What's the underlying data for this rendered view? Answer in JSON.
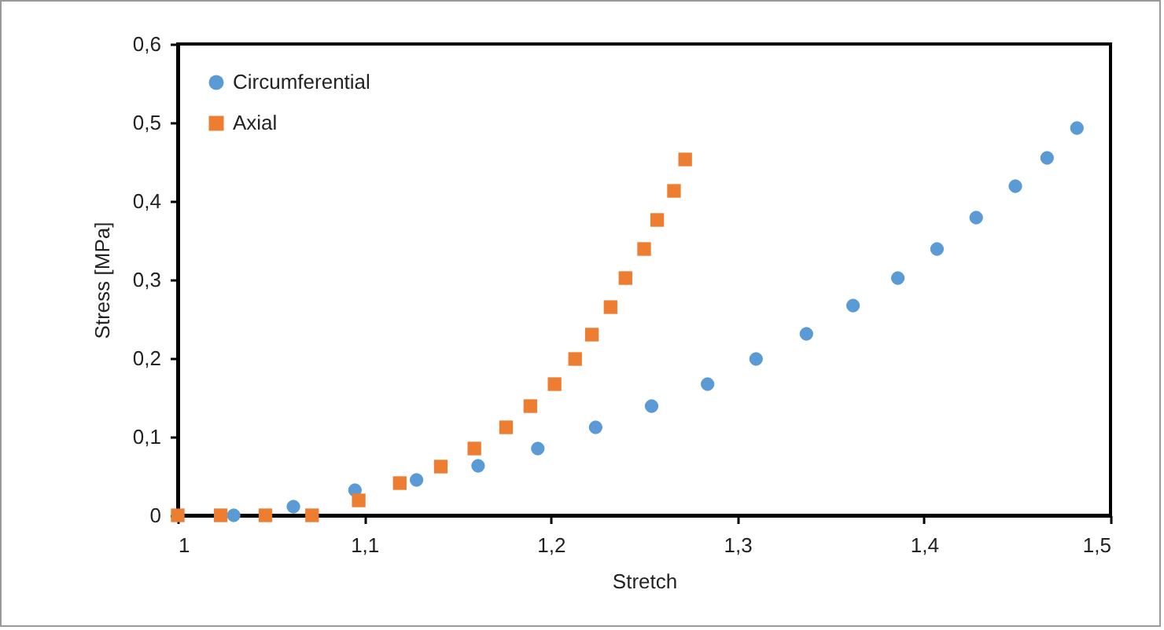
{
  "chart_data": {
    "type": "scatter",
    "xlabel": "Stretch",
    "ylabel": "Stress [MPa]",
    "xlim": [
      1,
      1.5
    ],
    "ylim": [
      0,
      0.6
    ],
    "xticks": [
      1,
      {
        "value": 1.1,
        "label": "1,1"
      },
      {
        "value": 1.2,
        "label": "1,2"
      },
      {
        "value": 1.3,
        "label": "1,3"
      },
      {
        "value": 1.4,
        "label": "1,4"
      },
      {
        "value": 1.5,
        "label": "1,5"
      }
    ],
    "yticks": [
      0,
      {
        "value": 0.1,
        "label": "0,1"
      },
      {
        "value": 0.2,
        "label": "0,2"
      },
      {
        "value": 0.3,
        "label": "0,3"
      },
      {
        "value": 0.4,
        "label": "0,4"
      },
      {
        "value": 0.5,
        "label": "0,5"
      },
      {
        "value": 0.6,
        "label": "0,6"
      }
    ],
    "grid": false,
    "legend": "top left",
    "series": [
      {
        "name": "Circumferential",
        "color": "#5b9bd5",
        "marker": "circle",
        "x": [
          1.03,
          1.062,
          1.095,
          1.128,
          1.161,
          1.193,
          1.224,
          1.254,
          1.284,
          1.31,
          1.337,
          1.362,
          1.386,
          1.407,
          1.428,
          1.449,
          1.466,
          1.482
        ],
        "values": [
          0,
          0.011,
          0.032,
          0.045,
          0.063,
          0.085,
          0.112,
          0.139,
          0.167,
          0.199,
          0.231,
          0.267,
          0.302,
          0.339,
          0.379,
          0.419,
          0.455,
          0.493
        ]
      },
      {
        "name": "Axial",
        "color": "#ed7d31",
        "marker": "square",
        "x": [
          1.0,
          1.023,
          1.047,
          1.072,
          1.097,
          1.119,
          1.141,
          1.159,
          1.176,
          1.189,
          1.202,
          1.213,
          1.222,
          1.232,
          1.24,
          1.25,
          1.257,
          1.266,
          1.272
        ],
        "values": [
          0,
          0,
          0,
          0,
          0.019,
          0.041,
          0.062,
          0.085,
          0.112,
          0.139,
          0.167,
          0.199,
          0.23,
          0.265,
          0.302,
          0.339,
          0.376,
          0.413,
          0.453
        ]
      }
    ]
  }
}
